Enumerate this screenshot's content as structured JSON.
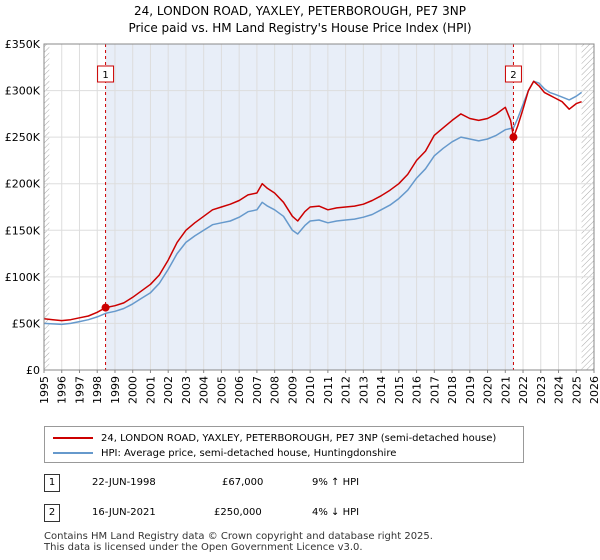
{
  "title_line1": "24, LONDON ROAD, YAXLEY, PETERBOROUGH, PE7 3NP",
  "title_line2": "Price paid vs. HM Land Registry's House Price Index (HPI)",
  "chart_data": {
    "type": "line",
    "title": "24, LONDON ROAD, YAXLEY, PETERBOROUGH, PE7 3NP — Price paid vs. HM Land Registry's House Price Index (HPI)",
    "xlim": [
      1995,
      2026
    ],
    "ylim": [
      0,
      350000
    ],
    "x_ticks": [
      1995,
      1996,
      1997,
      1998,
      1999,
      2000,
      2001,
      2002,
      2003,
      2004,
      2005,
      2006,
      2007,
      2008,
      2009,
      2010,
      2011,
      2012,
      2013,
      2014,
      2015,
      2016,
      2017,
      2018,
      2019,
      2020,
      2021,
      2022,
      2023,
      2024,
      2025,
      2026
    ],
    "y_ticks": [
      0,
      50000,
      100000,
      150000,
      200000,
      250000,
      300000,
      350000
    ],
    "y_tick_labels": [
      "£0",
      "£50K",
      "£100K",
      "£150K",
      "£200K",
      "£250K",
      "£300K",
      "£350K"
    ],
    "grid": true,
    "series": [
      {
        "name": "24, LONDON ROAD, YAXLEY, PETERBOROUGH, PE7 3NP (semi-detached house)",
        "color": "#cc0000",
        "x": [
          1995.0,
          1995.5,
          1996.0,
          1996.5,
          1997.0,
          1997.5,
          1998.0,
          1998.47,
          1999.0,
          1999.5,
          2000.0,
          2000.5,
          2001.0,
          2001.5,
          2002.0,
          2002.5,
          2003.0,
          2003.5,
          2004.0,
          2004.5,
          2005.0,
          2005.5,
          2006.0,
          2006.5,
          2007.0,
          2007.3,
          2007.6,
          2008.0,
          2008.5,
          2009.0,
          2009.3,
          2009.7,
          2010.0,
          2010.5,
          2011.0,
          2011.5,
          2012.0,
          2012.5,
          2013.0,
          2013.5,
          2014.0,
          2014.5,
          2015.0,
          2015.5,
          2016.0,
          2016.5,
          2017.0,
          2017.5,
          2018.0,
          2018.5,
          2019.0,
          2019.5,
          2020.0,
          2020.5,
          2021.0,
          2021.3,
          2021.46,
          2021.7,
          2022.0,
          2022.3,
          2022.6,
          2022.9,
          2023.2,
          2023.5,
          2023.8,
          2024.2,
          2024.6,
          2025.0,
          2025.3
        ],
        "y": [
          55000,
          54000,
          53000,
          54000,
          56000,
          58000,
          62000,
          67000,
          69000,
          72000,
          78000,
          85000,
          92000,
          102000,
          118000,
          137000,
          150000,
          158000,
          165000,
          172000,
          175000,
          178000,
          182000,
          188000,
          190000,
          200000,
          195000,
          190000,
          180000,
          165000,
          160000,
          170000,
          175000,
          176000,
          172000,
          174000,
          175000,
          176000,
          178000,
          182000,
          187000,
          193000,
          200000,
          210000,
          225000,
          235000,
          252000,
          260000,
          268000,
          275000,
          270000,
          268000,
          270000,
          275000,
          282000,
          268000,
          250000,
          262000,
          280000,
          300000,
          310000,
          305000,
          298000,
          295000,
          292000,
          288000,
          280000,
          286000,
          288000
        ]
      },
      {
        "name": "HPI: Average price, semi-detached house, Huntingdonshire",
        "color": "#6699cc",
        "x": [
          1995.0,
          1995.5,
          1996.0,
          1996.5,
          1997.0,
          1997.5,
          1998.0,
          1998.5,
          1999.0,
          1999.5,
          2000.0,
          2000.5,
          2001.0,
          2001.5,
          2002.0,
          2002.5,
          2003.0,
          2003.5,
          2004.0,
          2004.5,
          2005.0,
          2005.5,
          2006.0,
          2006.5,
          2007.0,
          2007.3,
          2007.6,
          2008.0,
          2008.5,
          2009.0,
          2009.3,
          2009.7,
          2010.0,
          2010.5,
          2011.0,
          2011.5,
          2012.0,
          2012.5,
          2013.0,
          2013.5,
          2014.0,
          2014.5,
          2015.0,
          2015.5,
          2016.0,
          2016.5,
          2017.0,
          2017.5,
          2018.0,
          2018.5,
          2019.0,
          2019.5,
          2020.0,
          2020.5,
          2021.0,
          2021.46,
          2021.7,
          2022.0,
          2022.3,
          2022.6,
          2022.9,
          2023.2,
          2023.5,
          2023.8,
          2024.2,
          2024.6,
          2025.0,
          2025.3
        ],
        "y": [
          50000,
          49500,
          49000,
          50000,
          52000,
          54000,
          57000,
          61000,
          63000,
          66000,
          71000,
          77000,
          83000,
          93000,
          108000,
          125000,
          137000,
          144000,
          150000,
          156000,
          158000,
          160000,
          164000,
          170000,
          172000,
          180000,
          176000,
          172000,
          165000,
          150000,
          146000,
          155000,
          160000,
          161000,
          158000,
          160000,
          161000,
          162000,
          164000,
          167000,
          172000,
          177000,
          184000,
          193000,
          206000,
          216000,
          230000,
          238000,
          245000,
          250000,
          248000,
          246000,
          248000,
          252000,
          258000,
          260000,
          270000,
          285000,
          300000,
          310000,
          308000,
          302000,
          298000,
          296000,
          293000,
          290000,
          294000,
          298000
        ]
      }
    ],
    "annotations": [
      {
        "label": "1",
        "x": 1998.47,
        "y": 67000
      },
      {
        "label": "2",
        "x": 2021.46,
        "y": 250000
      }
    ],
    "hatched_regions": [
      [
        1995,
        1995.3
      ],
      [
        2025.3,
        2026
      ]
    ],
    "shaded_regions": [
      [
        1998.47,
        2021.46
      ]
    ]
  },
  "legend": {
    "items": [
      {
        "label": "24, LONDON ROAD, YAXLEY, PETERBOROUGH, PE7 3NP (semi-detached house)",
        "color": "#cc0000"
      },
      {
        "label": "HPI: Average price, semi-detached house, Huntingdonshire",
        "color": "#6699cc"
      }
    ]
  },
  "transactions": [
    {
      "num": "1",
      "date": "22-JUN-1998",
      "price": "£67,000",
      "hpi": "9% ↑ HPI"
    },
    {
      "num": "2",
      "date": "16-JUN-2021",
      "price": "£250,000",
      "hpi": "4% ↓ HPI"
    }
  ],
  "footer": {
    "line1": "Contains HM Land Registry data © Crown copyright and database right 2025.",
    "line2": "This data is licensed under the Open Government Licence v3.0."
  }
}
